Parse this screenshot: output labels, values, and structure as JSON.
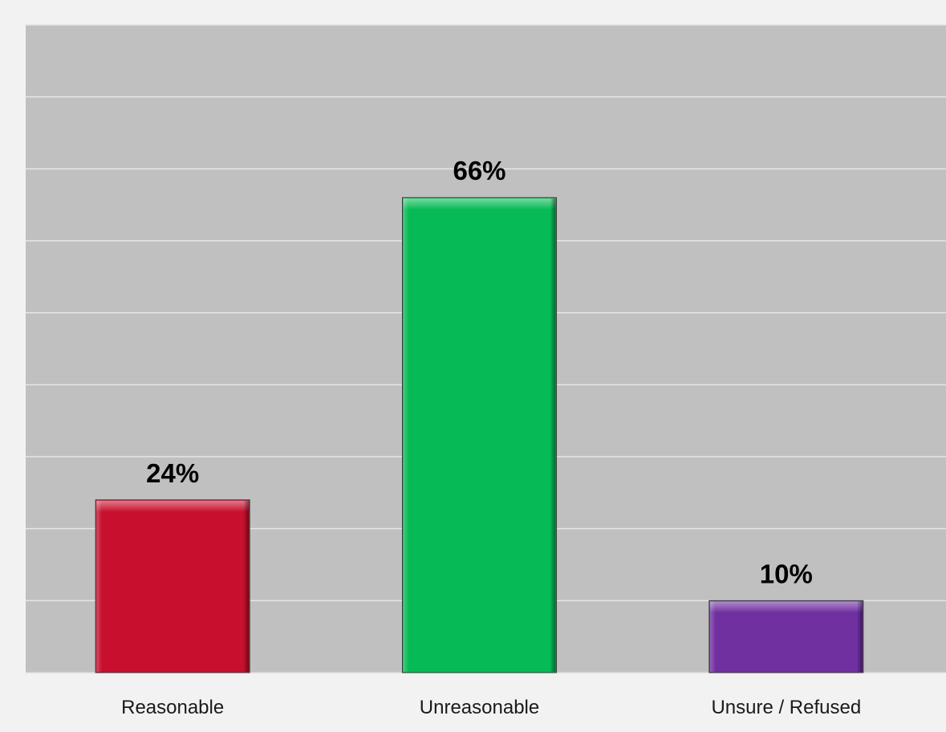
{
  "chart_data": {
    "type": "bar",
    "categories": [
      "Reasonable",
      "Unreasonable",
      "Unsure / Refused"
    ],
    "values": [
      24,
      66,
      10
    ],
    "data_labels": [
      "24%",
      "66%",
      "10%"
    ],
    "colors": [
      "#c8102e",
      "#06bb55",
      "#7030a0"
    ],
    "ylim": [
      0,
      90
    ],
    "y_grid_step": 10,
    "grid": true,
    "legend": "none",
    "title": "",
    "xlabel": "",
    "ylabel": ""
  },
  "colors": {
    "page_background": "#f2f2f2",
    "plot_background": "#c0c0c0",
    "gridline": "#e6e6e6"
  }
}
